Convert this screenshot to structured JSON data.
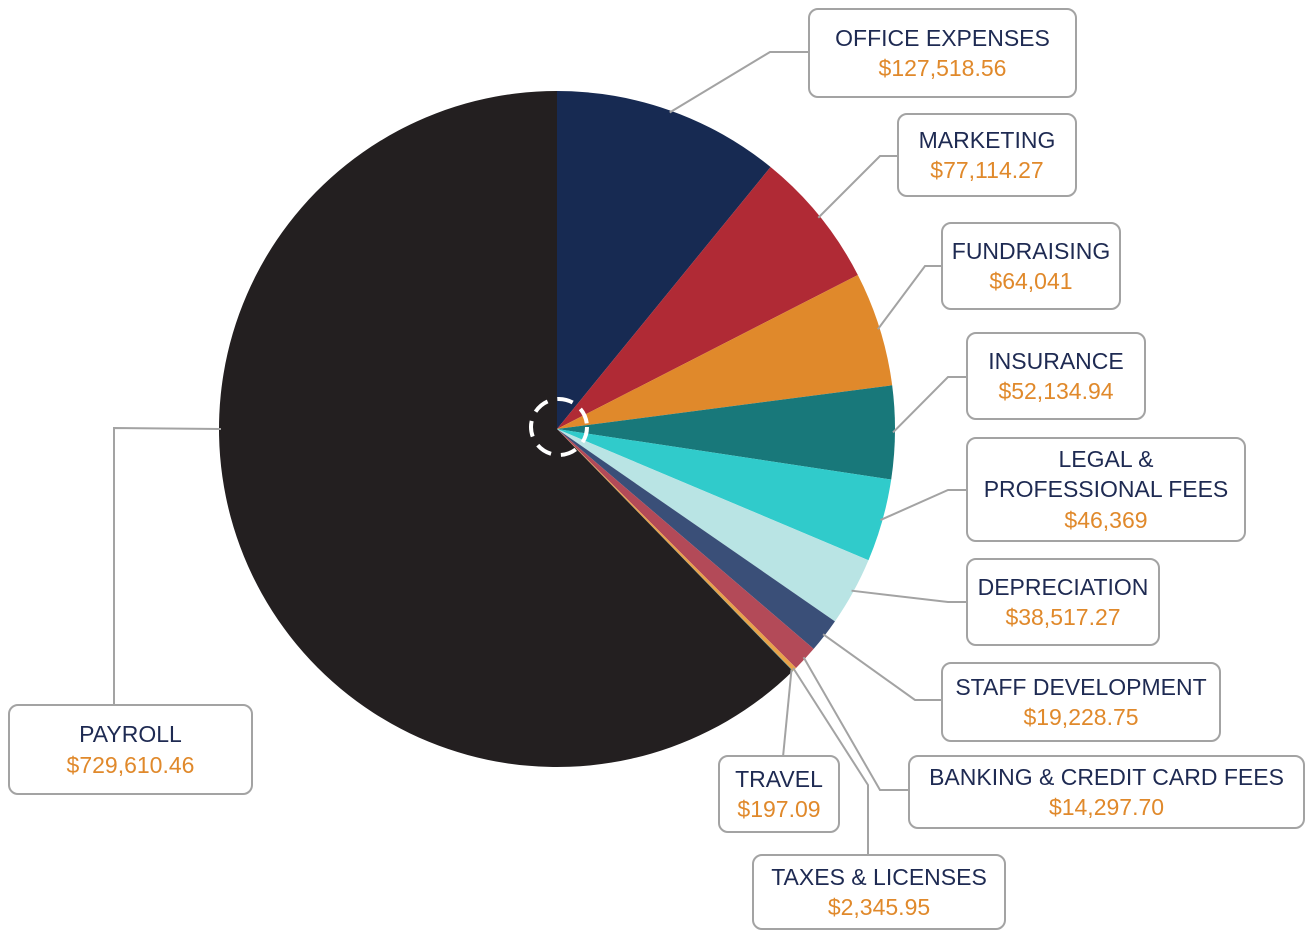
{
  "chart_data": {
    "type": "pie",
    "categories": [
      "OFFICE EXPENSES",
      "MARKETING",
      "FUNDRAISING",
      "INSURANCE",
      "LEGAL & PROFESSIONAL FEES",
      "DEPRECIATION",
      "STAFF DEVELOPMENT",
      "BANKING & CREDIT CARD FEES",
      "TAXES & LICENSES",
      "TRAVEL",
      "PAYROLL"
    ],
    "values": [
      127518.56,
      77114.27,
      64041,
      52134.94,
      46369,
      38517.27,
      19228.75,
      14297.7,
      2345.95,
      197.09,
      729610.46
    ],
    "value_labels": [
      "$127,518.56",
      "$77,114.27",
      "$64,041",
      "$52,134.94",
      "$46,369",
      "$38,517.27",
      "$19,228.75",
      "$14,297.70",
      "$2,345.95",
      "$197.09",
      "$729,610.46"
    ],
    "colors": [
      "#172a52",
      "#b02a35",
      "#e0892b",
      "#18787a",
      "#30cbcb",
      "#b9e4e4",
      "#3a4f78",
      "#b34a58",
      "#e8a24a",
      "#2a9a9a",
      "#231f20"
    ]
  }
}
